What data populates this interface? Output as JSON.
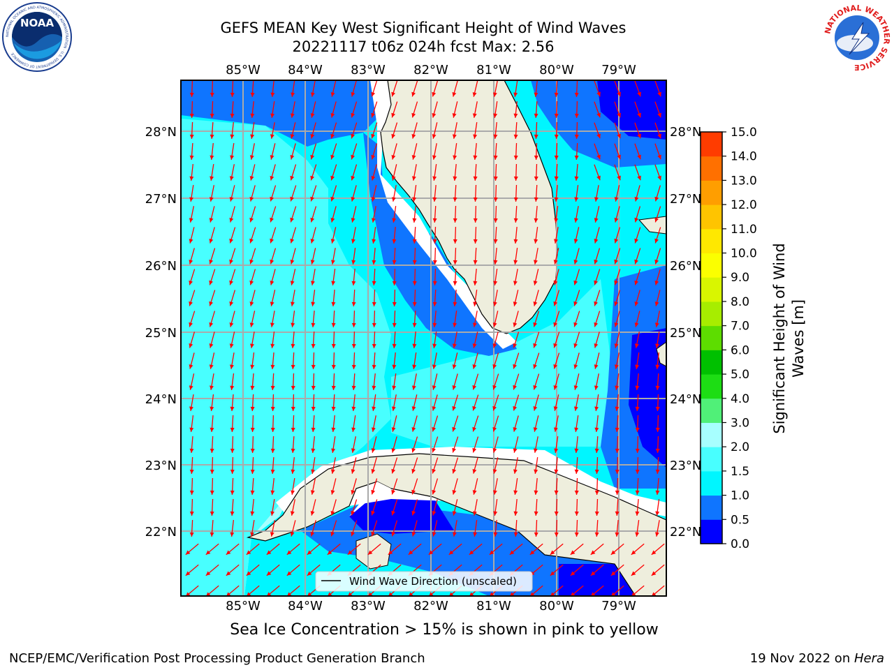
{
  "header": {
    "title_line1": "GEFS MEAN Key West Significant Height of Wind Waves",
    "title_line2": "20221117 t06z 024h fcst   Max: 2.56"
  },
  "logos": {
    "noaa_text": "NOAA",
    "noaa_ring_text": "NATIONAL OCEANIC AND ATMOSPHERIC ADMINISTRATION · U.S. DEPARTMENT OF COMMERCE",
    "nws_ring_text": "NATIONAL WEATHER SERVICE"
  },
  "map": {
    "lon_labels": [
      "85°W",
      "84°W",
      "83°W",
      "82°W",
      "81°W",
      "80°W",
      "79°W"
    ],
    "lat_labels": [
      "28°N",
      "27°N",
      "26°N",
      "25°N",
      "24°N",
      "23°N",
      "22°N"
    ],
    "legend_label": "Wind Wave Direction (unscaled)",
    "colors": {
      "land": "#eeeedd",
      "band_0_05": "#0000ff",
      "band_05_10": "#0f75ff",
      "band_10_15": "#00f6ff",
      "band_15_20": "#48ffff",
      "band_20_30": "#a7ffff",
      "arrow": "#ff0000",
      "grid": "#aaaaaa"
    }
  },
  "colorbar": {
    "label": "Significant Height of Wind Waves [m]",
    "ticks": [
      "15.0",
      "14.0",
      "13.0",
      "12.0",
      "11.0",
      "10.0",
      "9.0",
      "8.0",
      "7.0",
      "6.0",
      "5.0",
      "4.0",
      "3.0",
      "2.0",
      "1.5",
      "1.0",
      "0.5",
      "0.0"
    ],
    "colors": [
      "#0000ff",
      "#0f75ff",
      "#00f6ff",
      "#48ffff",
      "#a7ffff",
      "#50f078",
      "#1ddd14",
      "#00c000",
      "#5ddd00",
      "#a7ed00",
      "#d9f600",
      "#fbff00",
      "#ffe800",
      "#ffc400",
      "#ff9e00",
      "#ff7000",
      "#ff3c00",
      "#ff0000"
    ]
  },
  "footer": {
    "ice_note": "Sea Ice Concentration > 15% is shown in pink to yellow",
    "left": "NCEP/EMC/Verification Post Processing Product Generation Branch",
    "right_date": "19 Nov 2022 on ",
    "right_host": "Hera"
  }
}
